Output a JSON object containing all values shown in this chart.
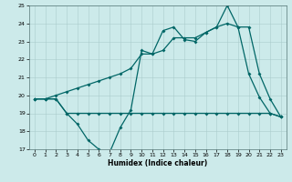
{
  "xlabel": "Humidex (Indice chaleur)",
  "bg_color": "#cceaea",
  "grid_color": "#aacccc",
  "line_color": "#006666",
  "xmin": 0,
  "xmax": 23,
  "ymin": 17,
  "ymax": 25,
  "yticks": [
    17,
    18,
    19,
    20,
    21,
    22,
    23,
    24,
    25
  ],
  "line1_x": [
    0,
    1,
    2,
    3,
    4,
    5,
    6,
    7,
    8,
    9,
    10,
    11,
    12,
    13,
    14,
    15,
    16,
    17,
    18,
    19,
    20,
    21,
    22,
    23
  ],
  "line1_y": [
    19.8,
    19.8,
    19.8,
    19.0,
    18.4,
    17.5,
    17.0,
    16.8,
    18.2,
    19.2,
    22.5,
    22.3,
    23.6,
    23.8,
    23.1,
    23.0,
    23.5,
    23.8,
    25.0,
    23.8,
    21.2,
    19.9,
    19.0,
    18.8
  ],
  "line2_x": [
    0,
    1,
    2,
    3,
    4,
    5,
    6,
    7,
    8,
    9,
    10,
    11,
    12,
    13,
    14,
    15,
    16,
    17,
    18,
    19,
    20,
    21,
    22,
    23
  ],
  "line2_y": [
    19.8,
    19.8,
    19.8,
    19.0,
    19.0,
    19.0,
    19.0,
    19.0,
    19.0,
    19.0,
    19.0,
    19.0,
    19.0,
    19.0,
    19.0,
    19.0,
    19.0,
    19.0,
    19.0,
    19.0,
    19.0,
    19.0,
    19.0,
    18.8
  ],
  "line3_x": [
    0,
    1,
    2,
    3,
    4,
    5,
    6,
    7,
    8,
    9,
    10,
    11,
    12,
    13,
    14,
    15,
    16,
    17,
    18,
    19,
    20,
    21,
    22,
    23
  ],
  "line3_y": [
    19.8,
    19.8,
    20.0,
    20.2,
    20.4,
    20.6,
    20.8,
    21.0,
    21.2,
    21.5,
    22.3,
    22.3,
    22.5,
    23.2,
    23.2,
    23.2,
    23.5,
    23.8,
    24.0,
    23.8,
    23.8,
    21.2,
    19.8,
    18.8
  ]
}
